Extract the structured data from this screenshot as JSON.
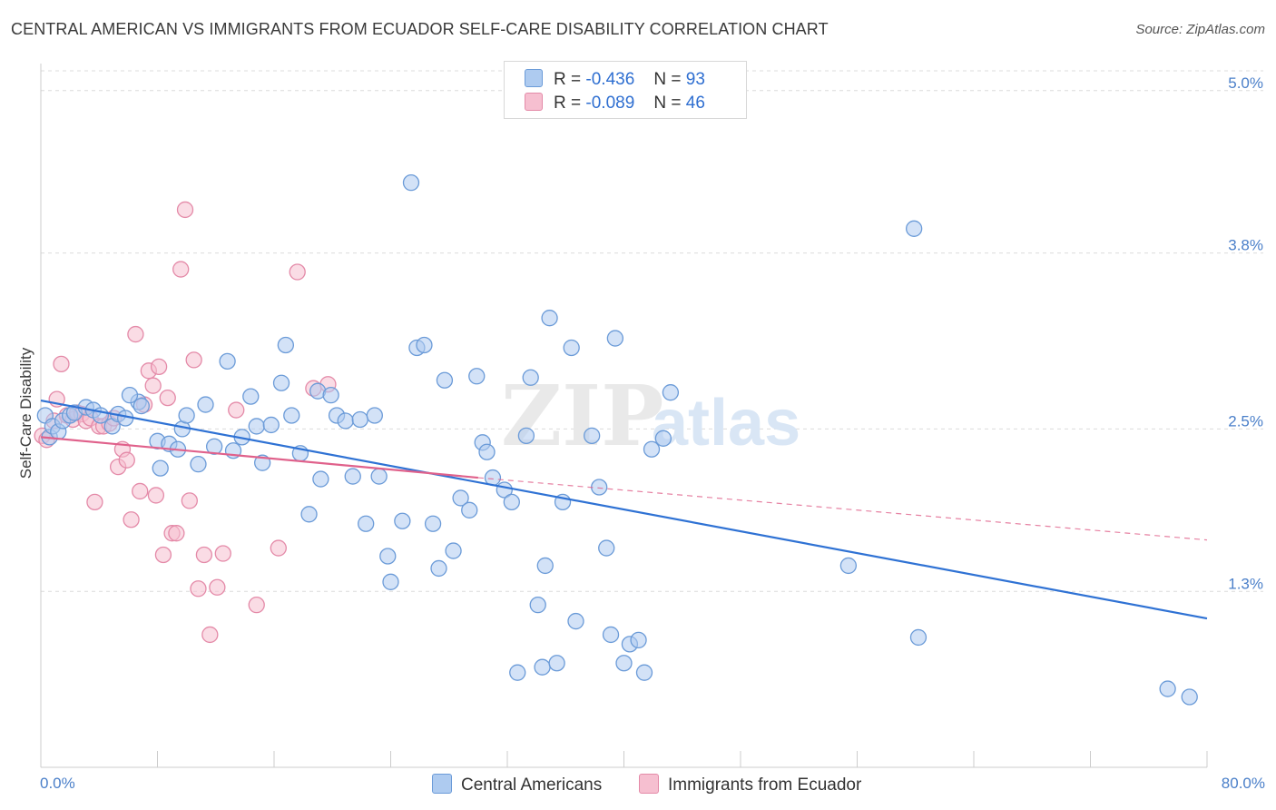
{
  "header": {
    "title": "CENTRAL AMERICAN VS IMMIGRANTS FROM ECUADOR SELF-CARE DISABILITY CORRELATION CHART",
    "source": "Source: ZipAtlas.com"
  },
  "legend": {
    "rows": [
      {
        "r_label": "R =",
        "r_value": "-0.436",
        "n_label": "N =",
        "n_value": "93"
      },
      {
        "r_label": "R =",
        "r_value": "-0.089",
        "n_label": "N =",
        "n_value": "46"
      }
    ]
  },
  "colors": {
    "blue_fill": "#aecbf0",
    "blue_stroke": "#6b9bd8",
    "blue_line": "#2f72d4",
    "pink_fill": "#f6bfd0",
    "pink_stroke": "#e48aa8",
    "pink_line": "#e0618b",
    "tick_text": "#4a7fc9",
    "grid": "#dcdcdc"
  },
  "watermark": {
    "zip": "ZIP",
    "atlas": "atlas"
  },
  "chart_data": {
    "type": "scatter",
    "title": "CENTRAL AMERICAN VS IMMIGRANTS FROM ECUADOR SELF-CARE DISABILITY CORRELATION CHART",
    "ylabel": "Self-Care Disability",
    "xlim": [
      0,
      80
    ],
    "ylim": [
      0,
      5.2
    ],
    "x_tick_labels": [
      "0.0%",
      "80.0%"
    ],
    "y_ticks": [
      {
        "value": 1.3,
        "label": "1.3%"
      },
      {
        "value": 2.5,
        "label": "2.5%"
      },
      {
        "value": 3.8,
        "label": "3.8%"
      },
      {
        "value": 5.0,
        "label": "5.0%"
      }
    ],
    "grid": true,
    "legend_position": "top-center",
    "series": [
      {
        "name": "Central Americans",
        "color": "#6b9bd8",
        "trend": {
          "x": [
            0,
            80
          ],
          "y": [
            2.71,
            1.1
          ],
          "dashed_extension": false
        },
        "points": [
          [
            0.3,
            2.6
          ],
          [
            0.6,
            2.44
          ],
          [
            0.8,
            2.52
          ],
          [
            1.2,
            2.48
          ],
          [
            1.5,
            2.56
          ],
          [
            2.0,
            2.6
          ],
          [
            2.3,
            2.62
          ],
          [
            3.1,
            2.66
          ],
          [
            3.6,
            2.64
          ],
          [
            4.1,
            2.6
          ],
          [
            4.9,
            2.52
          ],
          [
            5.3,
            2.61
          ],
          [
            5.8,
            2.58
          ],
          [
            6.7,
            2.7
          ],
          [
            6.9,
            2.67
          ],
          [
            8.0,
            2.41
          ],
          [
            8.2,
            2.21
          ],
          [
            8.8,
            2.39
          ],
          [
            9.4,
            2.35
          ],
          [
            9.7,
            2.5
          ],
          [
            10.0,
            2.6
          ],
          [
            10.8,
            2.24
          ],
          [
            11.3,
            2.68
          ],
          [
            11.9,
            2.37
          ],
          [
            12.8,
            3.0
          ],
          [
            13.2,
            2.34
          ],
          [
            13.8,
            2.44
          ],
          [
            14.4,
            2.74
          ],
          [
            14.8,
            2.52
          ],
          [
            15.2,
            2.25
          ],
          [
            15.8,
            2.53
          ],
          [
            16.5,
            2.84
          ],
          [
            16.8,
            3.12
          ],
          [
            17.2,
            2.6
          ],
          [
            17.8,
            2.32
          ],
          [
            18.4,
            1.87
          ],
          [
            19.0,
            2.78
          ],
          [
            19.2,
            2.13
          ],
          [
            19.9,
            2.75
          ],
          [
            20.3,
            2.6
          ],
          [
            20.9,
            2.56
          ],
          [
            21.4,
            2.15
          ],
          [
            21.9,
            2.57
          ],
          [
            22.3,
            1.8
          ],
          [
            22.9,
            2.6
          ],
          [
            23.2,
            2.15
          ],
          [
            23.8,
            1.56
          ],
          [
            24.0,
            1.37
          ],
          [
            24.8,
            1.82
          ],
          [
            25.4,
            4.32
          ],
          [
            25.8,
            3.1
          ],
          [
            26.3,
            3.12
          ],
          [
            26.9,
            1.8
          ],
          [
            27.3,
            1.47
          ],
          [
            27.7,
            2.86
          ],
          [
            28.3,
            1.6
          ],
          [
            28.8,
            1.99
          ],
          [
            29.4,
            1.9
          ],
          [
            29.9,
            2.89
          ],
          [
            30.3,
            2.4
          ],
          [
            30.6,
            2.33
          ],
          [
            31.0,
            2.14
          ],
          [
            31.8,
            2.05
          ],
          [
            32.3,
            1.96
          ],
          [
            32.7,
            0.7
          ],
          [
            33.3,
            2.45
          ],
          [
            33.6,
            2.88
          ],
          [
            34.1,
            1.2
          ],
          [
            34.4,
            0.74
          ],
          [
            34.6,
            1.49
          ],
          [
            34.9,
            3.32
          ],
          [
            35.4,
            0.77
          ],
          [
            35.8,
            1.96
          ],
          [
            36.4,
            3.1
          ],
          [
            36.7,
            1.08
          ],
          [
            37.8,
            2.45
          ],
          [
            38.3,
            2.07
          ],
          [
            38.8,
            1.62
          ],
          [
            39.1,
            0.98
          ],
          [
            39.4,
            3.17
          ],
          [
            40.0,
            0.77
          ],
          [
            40.4,
            0.91
          ],
          [
            41.0,
            0.94
          ],
          [
            41.4,
            0.7
          ],
          [
            41.9,
            2.35
          ],
          [
            42.7,
            2.43
          ],
          [
            43.2,
            2.77
          ],
          [
            55.4,
            1.49
          ],
          [
            59.9,
            3.98
          ],
          [
            60.2,
            0.96
          ],
          [
            77.3,
            0.58
          ],
          [
            78.8,
            0.52
          ],
          [
            6.1,
            2.75
          ]
        ]
      },
      {
        "name": "Immigrants from Ecuador",
        "color": "#e48aa8",
        "trend": {
          "x": [
            0,
            30
          ],
          "y": [
            2.44,
            2.14
          ],
          "dashed_to": [
            80,
            1.68
          ]
        },
        "points": [
          [
            0.1,
            2.45
          ],
          [
            0.4,
            2.42
          ],
          [
            0.9,
            2.56
          ],
          [
            1.1,
            2.72
          ],
          [
            1.4,
            2.98
          ],
          [
            1.8,
            2.6
          ],
          [
            2.2,
            2.57
          ],
          [
            2.5,
            2.62
          ],
          [
            2.8,
            2.61
          ],
          [
            3.1,
            2.56
          ],
          [
            3.4,
            2.58
          ],
          [
            3.7,
            1.96
          ],
          [
            4.0,
            2.52
          ],
          [
            4.3,
            2.52
          ],
          [
            4.7,
            2.54
          ],
          [
            5.0,
            2.58
          ],
          [
            5.3,
            2.22
          ],
          [
            5.6,
            2.35
          ],
          [
            5.9,
            2.27
          ],
          [
            6.2,
            1.83
          ],
          [
            6.5,
            3.2
          ],
          [
            6.8,
            2.04
          ],
          [
            7.1,
            2.68
          ],
          [
            7.4,
            2.93
          ],
          [
            7.7,
            2.82
          ],
          [
            7.9,
            2.01
          ],
          [
            8.1,
            2.96
          ],
          [
            8.4,
            1.57
          ],
          [
            8.7,
            2.73
          ],
          [
            9.0,
            1.73
          ],
          [
            9.3,
            1.73
          ],
          [
            9.6,
            3.68
          ],
          [
            9.9,
            4.12
          ],
          [
            10.2,
            1.97
          ],
          [
            10.5,
            3.01
          ],
          [
            10.8,
            1.32
          ],
          [
            11.2,
            1.57
          ],
          [
            11.6,
            0.98
          ],
          [
            12.1,
            1.33
          ],
          [
            12.5,
            1.58
          ],
          [
            13.4,
            2.64
          ],
          [
            14.8,
            1.2
          ],
          [
            16.3,
            1.62
          ],
          [
            17.6,
            3.66
          ],
          [
            18.7,
            2.8
          ],
          [
            19.7,
            2.83
          ]
        ]
      }
    ]
  }
}
